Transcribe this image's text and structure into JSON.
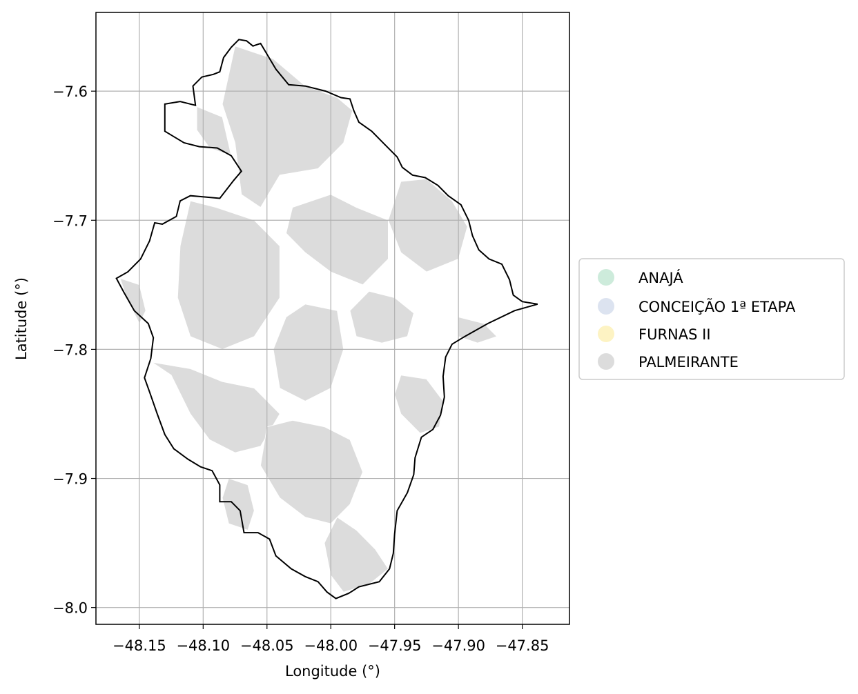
{
  "map": {
    "xlabel": "Longitude (°)",
    "ylabel": "Latitude (°)",
    "xlim": [
      -48.184,
      -47.813
    ],
    "ylim": [
      -8.013,
      -7.539
    ],
    "xticks": [
      -48.15,
      -48.1,
      -48.05,
      -48.0,
      -47.95,
      -47.9,
      -47.85
    ],
    "xtick_labels": [
      "−48.15",
      "−48.10",
      "−48.05",
      "−48.00",
      "−47.95",
      "−47.90",
      "−47.85"
    ],
    "yticks": [
      -7.6,
      -7.7,
      -7.8,
      -7.9,
      -8.0
    ],
    "ytick_labels": [
      "−7.6",
      "−7.7",
      "−7.8",
      "−7.9",
      "−8.0"
    ],
    "grid": true,
    "boundary": [
      [
        -48.106,
        -7.611
      ],
      [
        -48.108,
        -7.596
      ],
      [
        -48.101,
        -7.589
      ],
      [
        -48.092,
        -7.587
      ],
      [
        -48.087,
        -7.585
      ],
      [
        -48.084,
        -7.574
      ],
      [
        -48.078,
        -7.566
      ],
      [
        -48.072,
        -7.56
      ],
      [
        -48.066,
        -7.561
      ],
      [
        -48.061,
        -7.565
      ],
      [
        -48.055,
        -7.563
      ],
      [
        -48.049,
        -7.573
      ],
      [
        -48.043,
        -7.583
      ],
      [
        -48.033,
        -7.595
      ],
      [
        -48.02,
        -7.596
      ],
      [
        -48.004,
        -7.6
      ],
      [
        -47.992,
        -7.605
      ],
      [
        -47.985,
        -7.606
      ],
      [
        -47.982,
        -7.615
      ],
      [
        -47.978,
        -7.624
      ],
      [
        -47.968,
        -7.631
      ],
      [
        -47.958,
        -7.641
      ],
      [
        -47.948,
        -7.651
      ],
      [
        -47.944,
        -7.659
      ],
      [
        -47.936,
        -7.665
      ],
      [
        -47.926,
        -7.667
      ],
      [
        -47.916,
        -7.673
      ],
      [
        -47.908,
        -7.681
      ],
      [
        -47.898,
        -7.688
      ],
      [
        -47.892,
        -7.7
      ],
      [
        -47.889,
        -7.712
      ],
      [
        -47.884,
        -7.723
      ],
      [
        -47.876,
        -7.73
      ],
      [
        -47.866,
        -7.734
      ],
      [
        -47.86,
        -7.746
      ],
      [
        -47.857,
        -7.758
      ],
      [
        -47.85,
        -7.763
      ],
      [
        -47.838,
        -7.765
      ],
      [
        -47.856,
        -7.77
      ],
      [
        -47.877,
        -7.78
      ],
      [
        -47.895,
        -7.79
      ],
      [
        -47.905,
        -7.796
      ],
      [
        -47.91,
        -7.806
      ],
      [
        -47.912,
        -7.821
      ],
      [
        -47.911,
        -7.837
      ],
      [
        -47.914,
        -7.851
      ],
      [
        -47.92,
        -7.862
      ],
      [
        -47.929,
        -7.868
      ],
      [
        -47.934,
        -7.884
      ],
      [
        -47.935,
        -7.897
      ],
      [
        -47.94,
        -7.911
      ],
      [
        -47.948,
        -7.925
      ],
      [
        -47.95,
        -7.943
      ],
      [
        -47.951,
        -7.958
      ],
      [
        -47.954,
        -7.97
      ],
      [
        -47.962,
        -7.98
      ],
      [
        -47.978,
        -7.984
      ],
      [
        -47.986,
        -7.989
      ],
      [
        -47.996,
        -7.993
      ],
      [
        -48.003,
        -7.988
      ],
      [
        -48.01,
        -7.98
      ],
      [
        -48.02,
        -7.976
      ],
      [
        -48.031,
        -7.97
      ],
      [
        -48.043,
        -7.96
      ],
      [
        -48.048,
        -7.947
      ],
      [
        -48.057,
        -7.942
      ],
      [
        -48.068,
        -7.942
      ],
      [
        -48.071,
        -7.925
      ],
      [
        -48.078,
        -7.918
      ],
      [
        -48.087,
        -7.918
      ],
      [
        -48.087,
        -7.905
      ],
      [
        -48.093,
        -7.894
      ],
      [
        -48.102,
        -7.891
      ],
      [
        -48.112,
        -7.885
      ],
      [
        -48.123,
        -7.877
      ],
      [
        -48.13,
        -7.866
      ],
      [
        -48.136,
        -7.85
      ],
      [
        -48.142,
        -7.833
      ],
      [
        -48.146,
        -7.822
      ],
      [
        -48.141,
        -7.807
      ],
      [
        -48.139,
        -7.791
      ],
      [
        -48.143,
        -7.78
      ],
      [
        -48.154,
        -7.77
      ],
      [
        -48.162,
        -7.756
      ],
      [
        -48.168,
        -7.745
      ],
      [
        -48.159,
        -7.74
      ],
      [
        -48.149,
        -7.73
      ],
      [
        -48.142,
        -7.716
      ],
      [
        -48.138,
        -7.702
      ],
      [
        -48.132,
        -7.703
      ],
      [
        -48.121,
        -7.697
      ],
      [
        -48.118,
        -7.685
      ],
      [
        -48.11,
        -7.681
      ],
      [
        -48.098,
        -7.682
      ],
      [
        -48.087,
        -7.683
      ],
      [
        -48.076,
        -7.669
      ],
      [
        -48.07,
        -7.662
      ],
      [
        -48.078,
        -7.65
      ],
      [
        -48.089,
        -7.644
      ],
      [
        -48.103,
        -7.643
      ],
      [
        -48.115,
        -7.64
      ],
      [
        -48.13,
        -7.631
      ],
      [
        -48.13,
        -7.61
      ],
      [
        -48.118,
        -7.608
      ],
      [
        -48.106,
        -7.611
      ]
    ],
    "palmeirante_blocks": [
      [
        [
          -48.075,
          -7.565
        ],
        [
          -48.045,
          -7.575
        ],
        [
          -48.02,
          -7.596
        ],
        [
          -47.995,
          -7.605
        ],
        [
          -47.983,
          -7.615
        ],
        [
          -47.99,
          -7.64
        ],
        [
          -48.01,
          -7.66
        ],
        [
          -48.04,
          -7.665
        ],
        [
          -48.055,
          -7.69
        ],
        [
          -48.07,
          -7.68
        ],
        [
          -48.075,
          -7.64
        ],
        [
          -48.085,
          -7.61
        ]
      ],
      [
        [
          -48.105,
          -7.612
        ],
        [
          -48.085,
          -7.62
        ],
        [
          -48.078,
          -7.65
        ],
        [
          -48.095,
          -7.644
        ],
        [
          -48.105,
          -7.63
        ]
      ],
      [
        [
          -48.11,
          -7.685
        ],
        [
          -48.09,
          -7.69
        ],
        [
          -48.06,
          -7.7
        ],
        [
          -48.04,
          -7.72
        ],
        [
          -48.04,
          -7.76
        ],
        [
          -48.06,
          -7.79
        ],
        [
          -48.085,
          -7.8
        ],
        [
          -48.11,
          -7.79
        ],
        [
          -48.12,
          -7.76
        ],
        [
          -48.118,
          -7.72
        ]
      ],
      [
        [
          -48.03,
          -7.69
        ],
        [
          -48.0,
          -7.68
        ],
        [
          -47.98,
          -7.69
        ],
        [
          -47.955,
          -7.7
        ],
        [
          -47.955,
          -7.73
        ],
        [
          -47.975,
          -7.75
        ],
        [
          -48.0,
          -7.74
        ],
        [
          -48.02,
          -7.725
        ],
        [
          -48.035,
          -7.71
        ]
      ],
      [
        [
          -47.945,
          -7.67
        ],
        [
          -47.925,
          -7.668
        ],
        [
          -47.905,
          -7.685
        ],
        [
          -47.893,
          -7.705
        ],
        [
          -47.9,
          -7.73
        ],
        [
          -47.925,
          -7.74
        ],
        [
          -47.945,
          -7.725
        ],
        [
          -47.955,
          -7.7
        ]
      ],
      [
        [
          -47.97,
          -7.755
        ],
        [
          -47.95,
          -7.76
        ],
        [
          -47.935,
          -7.772
        ],
        [
          -47.94,
          -7.79
        ],
        [
          -47.96,
          -7.795
        ],
        [
          -47.98,
          -7.79
        ],
        [
          -47.985,
          -7.77
        ]
      ],
      [
        [
          -48.02,
          -7.765
        ],
        [
          -47.995,
          -7.77
        ],
        [
          -47.99,
          -7.8
        ],
        [
          -48.0,
          -7.83
        ],
        [
          -48.02,
          -7.84
        ],
        [
          -48.04,
          -7.83
        ],
        [
          -48.045,
          -7.8
        ],
        [
          -48.035,
          -7.775
        ]
      ],
      [
        [
          -48.14,
          -7.81
        ],
        [
          -48.125,
          -7.82
        ],
        [
          -48.11,
          -7.85
        ],
        [
          -48.095,
          -7.87
        ],
        [
          -48.075,
          -7.88
        ],
        [
          -48.055,
          -7.875
        ],
        [
          -48.04,
          -7.85
        ],
        [
          -48.06,
          -7.83
        ],
        [
          -48.085,
          -7.825
        ],
        [
          -48.11,
          -7.815
        ]
      ],
      [
        [
          -48.05,
          -7.86
        ],
        [
          -48.03,
          -7.855
        ],
        [
          -48.005,
          -7.86
        ],
        [
          -47.985,
          -7.87
        ],
        [
          -47.975,
          -7.895
        ],
        [
          -47.985,
          -7.92
        ],
        [
          -48.0,
          -7.935
        ],
        [
          -48.02,
          -7.93
        ],
        [
          -48.04,
          -7.915
        ],
        [
          -48.055,
          -7.89
        ]
      ],
      [
        [
          -47.995,
          -7.93
        ],
        [
          -47.98,
          -7.94
        ],
        [
          -47.965,
          -7.955
        ],
        [
          -47.955,
          -7.97
        ],
        [
          -47.97,
          -7.982
        ],
        [
          -47.99,
          -7.988
        ],
        [
          -48.0,
          -7.975
        ],
        [
          -48.005,
          -7.95
        ]
      ],
      [
        [
          -47.945,
          -7.82
        ],
        [
          -47.925,
          -7.823
        ],
        [
          -47.912,
          -7.84
        ],
        [
          -47.915,
          -7.86
        ],
        [
          -47.93,
          -7.865
        ],
        [
          -47.945,
          -7.85
        ],
        [
          -47.95,
          -7.835
        ]
      ],
      [
        [
          -48.08,
          -7.9
        ],
        [
          -48.065,
          -7.905
        ],
        [
          -48.06,
          -7.925
        ],
        [
          -48.065,
          -7.94
        ],
        [
          -48.08,
          -7.935
        ],
        [
          -48.085,
          -7.915
        ]
      ],
      [
        [
          -48.165,
          -7.745
        ],
        [
          -48.15,
          -7.75
        ],
        [
          -48.145,
          -7.77
        ],
        [
          -48.15,
          -7.78
        ],
        [
          -48.16,
          -7.76
        ]
      ],
      [
        [
          -47.9,
          -7.775
        ],
        [
          -47.88,
          -7.78
        ],
        [
          -47.87,
          -7.79
        ],
        [
          -47.885,
          -7.795
        ],
        [
          -47.9,
          -7.79
        ]
      ]
    ]
  },
  "legend": {
    "items": [
      {
        "label": "ANAJÁ",
        "color": "#cdebdb"
      },
      {
        "label": "CONCEIÇÃO 1ª ETAPA",
        "color": "#dce3f0"
      },
      {
        "label": "FURNAS II",
        "color": "#fdf3c3"
      },
      {
        "label": "PALMEIRANTE",
        "color": "#dcdcdc"
      }
    ]
  },
  "colors": {
    "palmeirante_fill": "#dcdcdc",
    "boundary": "#000000",
    "grid": "#b0b0b0"
  }
}
